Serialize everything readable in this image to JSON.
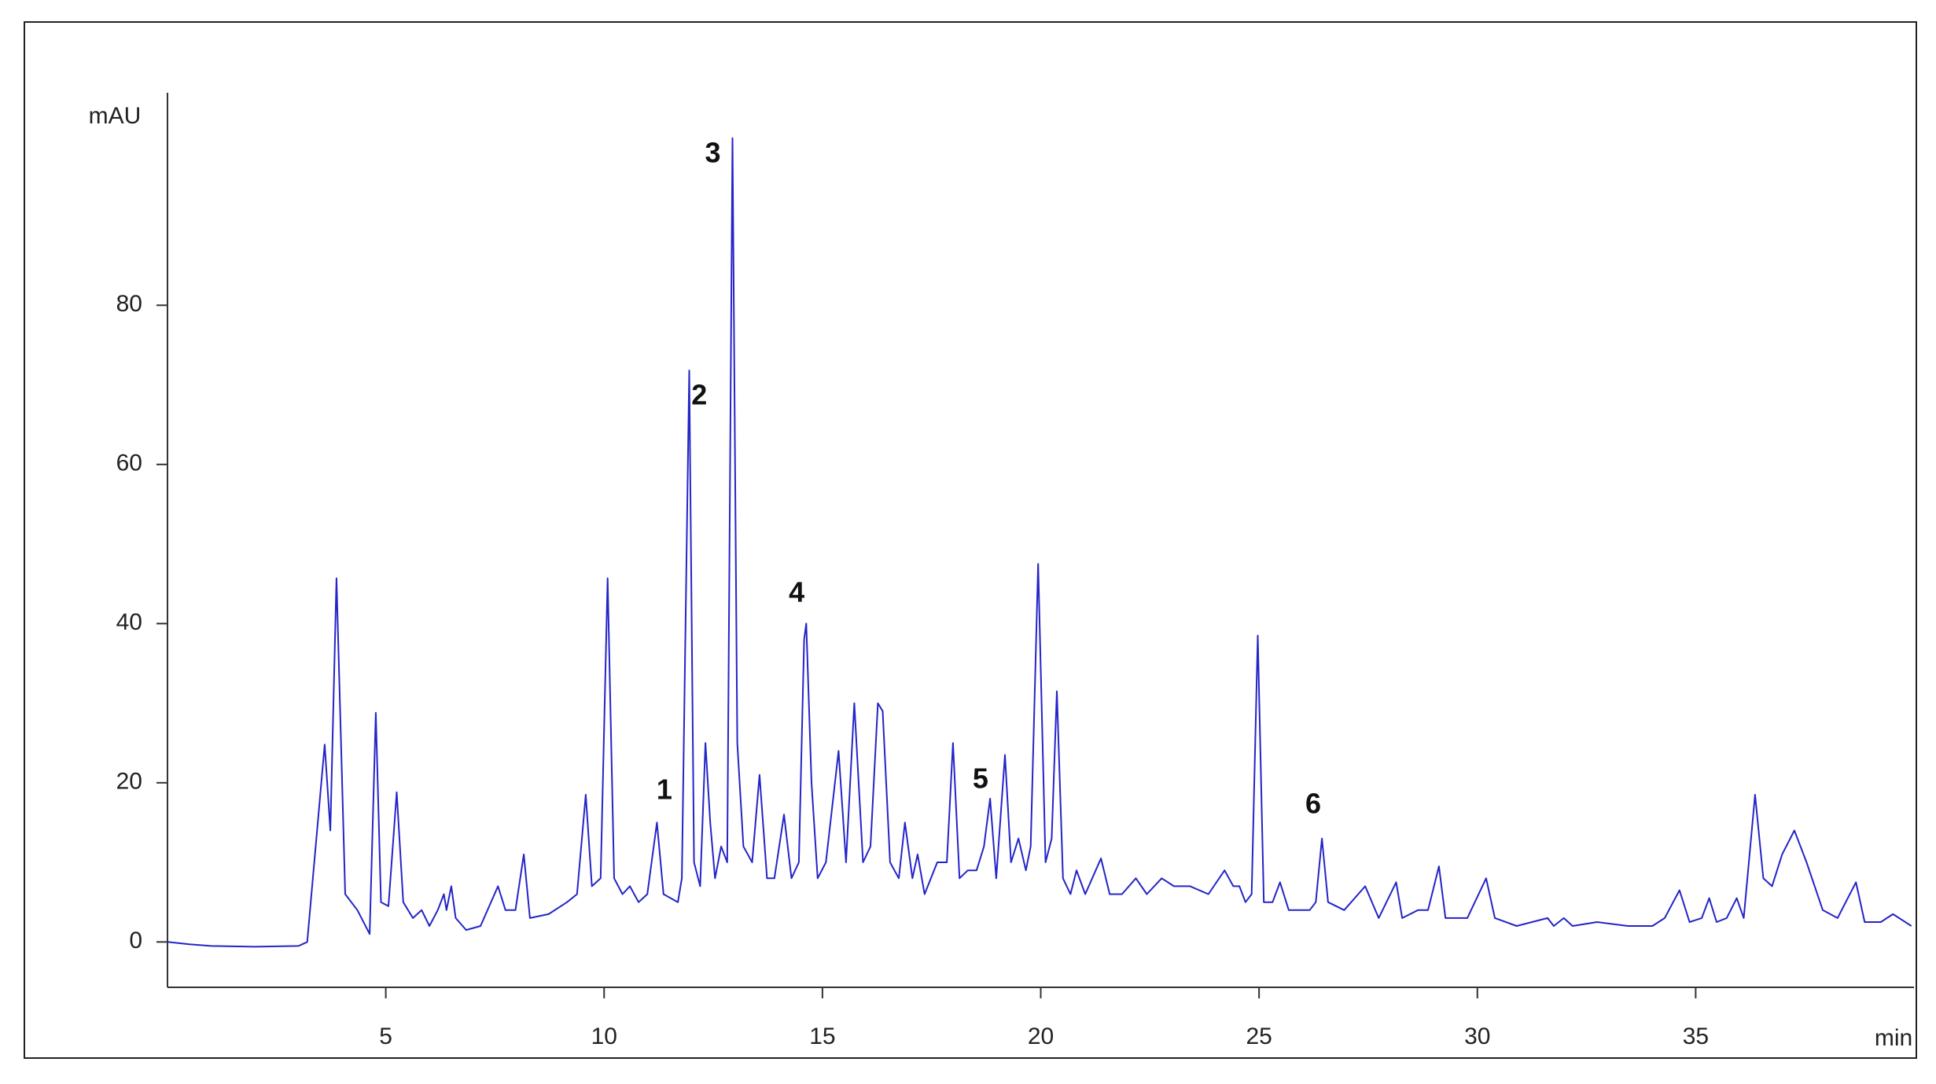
{
  "chart_data": {
    "type": "line",
    "y_label": "mAU",
    "x_label": "min",
    "xlim": [
      0,
      40
    ],
    "ylim": [
      -5.7,
      106.7
    ],
    "xticks": [
      5,
      10,
      15,
      20,
      25,
      30,
      35
    ],
    "yticks": [
      0,
      20,
      40,
      60,
      80
    ],
    "x": [
      0,
      0.5,
      1,
      2,
      3,
      3.2,
      3.6,
      3.73,
      3.87,
      4.07,
      4.35,
      4.63,
      4.77,
      4.89,
      5.06,
      5.25,
      5.4,
      5.62,
      5.82,
      6.0,
      6.19,
      6.33,
      6.39,
      6.5,
      6.6,
      6.84,
      7.17,
      7.57,
      7.74,
      7.97,
      8.16,
      8.3,
      8.73,
      9.15,
      9.38,
      9.58,
      9.72,
      9.92,
      10.08,
      10.23,
      10.42,
      10.59,
      10.79,
      10.99,
      11.21,
      11.36,
      11.69,
      11.78,
      11.95,
      12.06,
      12.2,
      12.32,
      12.43,
      12.54,
      12.68,
      12.82,
      12.94,
      13.05,
      13.19,
      13.39,
      13.56,
      13.73,
      13.9,
      14.12,
      14.29,
      14.46,
      14.58,
      14.63,
      14.75,
      14.89,
      15.08,
      15.37,
      15.54,
      15.73,
      15.93,
      16.1,
      16.27,
      16.38,
      16.55,
      16.75,
      16.89,
      17.06,
      17.18,
      17.34,
      17.63,
      17.85,
      17.99,
      18.14,
      18.33,
      18.53,
      18.7,
      18.84,
      18.98,
      19.18,
      19.32,
      19.49,
      19.66,
      19.77,
      19.94,
      20.11,
      20.25,
      20.37,
      20.51,
      20.68,
      20.82,
      21.02,
      21.38,
      21.58,
      21.86,
      22.18,
      22.43,
      22.77,
      23.05,
      23.42,
      23.84,
      24.21,
      24.41,
      24.55,
      24.69,
      24.83,
      24.97,
      25.11,
      25.31,
      25.48,
      25.68,
      25.96,
      26.16,
      26.3,
      26.44,
      26.58,
      26.95,
      27.43,
      27.74,
      28.14,
      28.28,
      28.64,
      28.87,
      29.12,
      29.27,
      29.77,
      30.2,
      30.4,
      30.9,
      31.61,
      31.75,
      31.98,
      32.18,
      32.74,
      33.45,
      34.01,
      34.29,
      34.63,
      34.86,
      35.14,
      35.31,
      35.48,
      35.71,
      35.94,
      36.1,
      36.36,
      36.55,
      36.75,
      36.98,
      37.26,
      37.54,
      37.91,
      38.25,
      38.67,
      38.87,
      39.24,
      39.52,
      39.94
    ],
    "series": [
      {
        "color": "#2424c8",
        "values": [
          0,
          -0.3,
          -0.5,
          -0.6,
          -0.5,
          0,
          24.8,
          14,
          45.7,
          6,
          4,
          1,
          28.8,
          5,
          4.5,
          18.8,
          5,
          3,
          4,
          2,
          4,
          6,
          4,
          7,
          3,
          1.5,
          2,
          7,
          4,
          4,
          11,
          3,
          3.5,
          5,
          6,
          18.5,
          7,
          8,
          45.7,
          8,
          6,
          7,
          5,
          6,
          15,
          6,
          5,
          8,
          71.8,
          10,
          7,
          25,
          15,
          8,
          12,
          10,
          101,
          25,
          12,
          10,
          21,
          8,
          8,
          16,
          8,
          10,
          38,
          40,
          20,
          8,
          10,
          24,
          10,
          30,
          10,
          12,
          30,
          29,
          10,
          8,
          15,
          8,
          11,
          6,
          10,
          10,
          25,
          8,
          9,
          9,
          12,
          18,
          8,
          23.5,
          10,
          13,
          9,
          12,
          47.5,
          10,
          13,
          31.5,
          8,
          6,
          9,
          6,
          10.5,
          6,
          6,
          8,
          6,
          8,
          7,
          7,
          6,
          9,
          7,
          7,
          5,
          6,
          38.5,
          5,
          5,
          7.5,
          4,
          4,
          4,
          5,
          13,
          5,
          4,
          7,
          3,
          7.5,
          3,
          4,
          4,
          9.5,
          3,
          3,
          8,
          3,
          2,
          3,
          2,
          3,
          2,
          2.5,
          2,
          2,
          3,
          6.5,
          2.5,
          3,
          5.5,
          2.5,
          3,
          5.5,
          3,
          18.5,
          8,
          7,
          11,
          14,
          10,
          4,
          3,
          7.5,
          2.5,
          2.5,
          3.5,
          2
        ]
      }
    ],
    "annotations": [
      {
        "text": "1",
        "x": 11.38,
        "y": 18.9
      },
      {
        "text": "2",
        "x": 12.18,
        "y": 68.5
      },
      {
        "text": "3",
        "x": 12.49,
        "y": 98.9
      },
      {
        "text": "4",
        "x": 14.41,
        "y": 43.7
      },
      {
        "text": "5",
        "x": 18.62,
        "y": 20.3
      },
      {
        "text": "6",
        "x": 26.24,
        "y": 17.1
      }
    ]
  }
}
